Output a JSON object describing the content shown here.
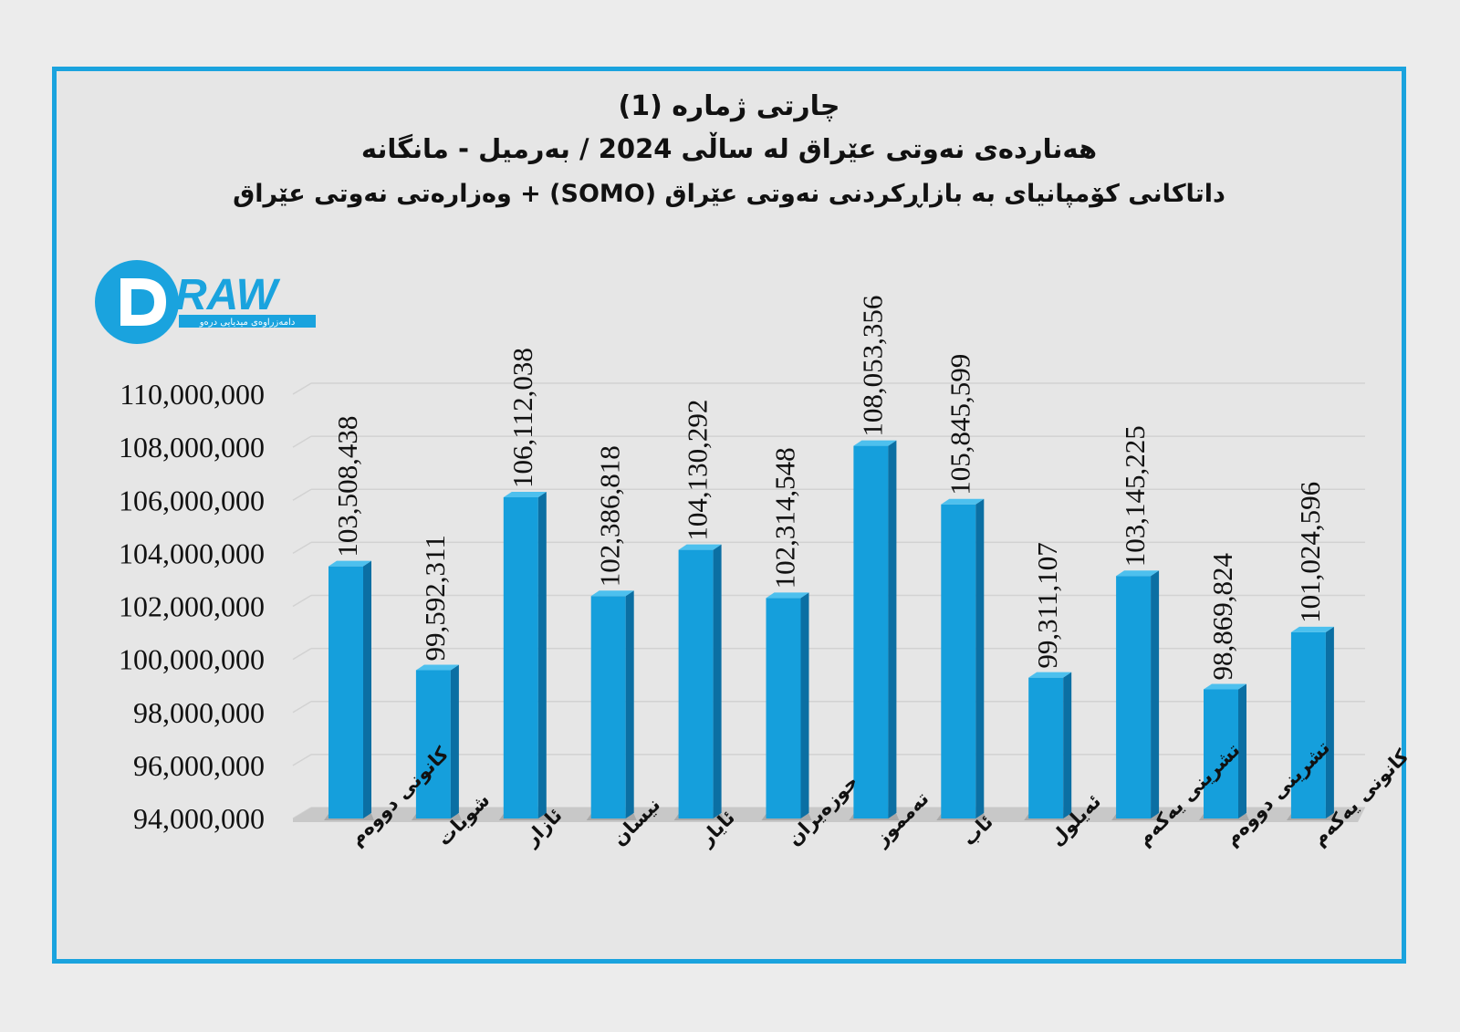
{
  "titles": {
    "line1": "چارتی ژمارە (1)",
    "line2": "هەناردەی نەوتی عێراق لە ساڵی 2024 / بەرمیل - مانگانە",
    "line3": "داتاکانی کۆمپانیای بە بازاڕکردنی نەوتی عێراق (SOMO) + وەزارەتی نەوتی عێراق"
  },
  "logo": {
    "text": "RAW",
    "tagline": "دامەزراوەی میدیایی درەو"
  },
  "colors": {
    "bar_front": "#159fdc",
    "bar_side": "#0b6fa3",
    "bar_top": "#4dc0ee",
    "frame": "#1aa3de"
  },
  "chart_data": {
    "type": "bar",
    "categories": [
      "کانونی دووەم",
      "شوبات",
      "ئازار",
      "نیسان",
      "ئایار",
      "حوزەیران",
      "تەمموز",
      "ئاب",
      "ئەیلول",
      "تشرینی یەکەم",
      "تشرینی دووەم",
      "کانونی یەکەم"
    ],
    "values": [
      103508438,
      99592311,
      106112038,
      102386818,
      104130292,
      102314548,
      108053356,
      105845599,
      99311107,
      103145225,
      98869824,
      101024596
    ],
    "value_labels": [
      "103,508,438",
      "99,592,311",
      "106,112,038",
      "102,386,818",
      "104,130,292",
      "102,314,548",
      "108,053,356",
      "105,845,599",
      "99,311,107",
      "103,145,225",
      "98,869,824",
      "101,024,596"
    ],
    "ylim": [
      94000000,
      110000000
    ],
    "yticks": [
      94000000,
      96000000,
      98000000,
      100000000,
      102000000,
      104000000,
      106000000,
      108000000,
      110000000
    ],
    "ytick_labels": [
      "94,000,000",
      "96,000,000",
      "98,000,000",
      "100,000,000",
      "102,000,000",
      "104,000,000",
      "106,000,000",
      "108,000,000",
      "110,000,000"
    ],
    "grid": true
  }
}
